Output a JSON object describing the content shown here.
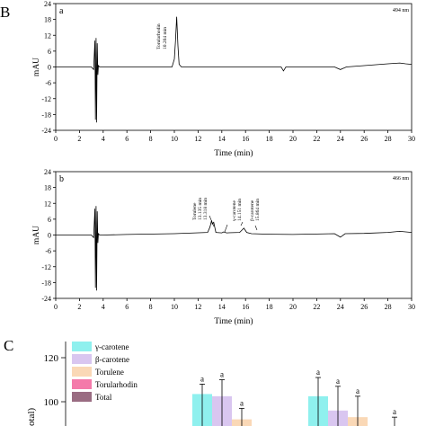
{
  "figure": {
    "panel_B_label": "B",
    "panel_C_label": "C"
  },
  "chart_data": [
    {
      "type": "line",
      "panel_label": "a",
      "wavelength": "494 nm",
      "xlabel": "Time (min)",
      "ylabel": "mAU",
      "xlim": [
        0,
        30
      ],
      "ylim": [
        -24,
        24
      ],
      "xticks": [
        0,
        2,
        4,
        6,
        8,
        10,
        12,
        14,
        16,
        18,
        20,
        22,
        24,
        26,
        28,
        30
      ],
      "yticks": [
        -24,
        -18,
        -12,
        -6,
        0,
        6,
        12,
        18,
        24
      ],
      "grid": false,
      "series": [
        {
          "x": [
            0,
            3.0,
            3.2,
            3.3,
            3.35,
            3.4,
            3.45,
            3.5,
            3.55,
            3.6,
            3.7,
            3.8,
            4.0,
            5,
            8,
            9.8,
            10.0,
            10.1,
            10.2,
            10.3,
            10.4,
            10.6,
            11,
            14,
            19.0,
            19.2,
            19.4,
            20,
            23.5,
            24.0,
            24.5,
            26,
            28,
            29,
            29.5,
            30
          ],
          "y": [
            0,
            0,
            -1,
            10,
            -20,
            11,
            -21,
            9,
            -3,
            0.5,
            0,
            0,
            0,
            0,
            0,
            0,
            3,
            10,
            19,
            8,
            1,
            0,
            0,
            0,
            0,
            -1.5,
            0,
            0,
            0,
            -1,
            0,
            0.5,
            1.2,
            1.5,
            1.2,
            1.0
          ]
        }
      ],
      "annotations": [
        {
          "text": "Torularhodin",
          "x": 10.2
        },
        {
          "text": "10.204 min",
          "x": 10.2
        }
      ]
    },
    {
      "type": "line",
      "panel_label": "b",
      "wavelength": "466 nm",
      "xlabel": "Time (min)",
      "ylabel": "mAU",
      "xlim": [
        0,
        30
      ],
      "ylim": [
        -24,
        24
      ],
      "xticks": [
        0,
        2,
        4,
        6,
        8,
        10,
        12,
        14,
        16,
        18,
        20,
        22,
        24,
        26,
        28,
        30
      ],
      "yticks": [
        -24,
        -18,
        -12,
        -6,
        0,
        6,
        12,
        18,
        24
      ],
      "grid": false,
      "series": [
        {
          "x": [
            0,
            3.0,
            3.2,
            3.3,
            3.35,
            3.4,
            3.45,
            3.5,
            3.55,
            3.6,
            3.7,
            3.8,
            4.0,
            6,
            10,
            12.8,
            13.0,
            13.135,
            13.2,
            13.318,
            13.5,
            14.0,
            14.151,
            14.4,
            15.5,
            15.864,
            16.1,
            16.5,
            18,
            20,
            23.5,
            24.0,
            24.4,
            26,
            28,
            29,
            29.5,
            30
          ],
          "y": [
            0,
            0,
            -1,
            10,
            -20,
            11,
            -21,
            9,
            -3,
            0.5,
            0,
            0,
            0,
            0.2,
            0.5,
            1.0,
            3.0,
            5.5,
            4.2,
            4.8,
            1.0,
            0.8,
            1.2,
            0.8,
            1.0,
            2.6,
            1.0,
            0.5,
            0.3,
            0.2,
            0.5,
            -0.8,
            0.5,
            0.6,
            1.0,
            1.4,
            1.2,
            1.0
          ]
        }
      ],
      "annotations": [
        {
          "text": "Torulene",
          "x": 13.135
        },
        {
          "text": "13.135 min",
          "x": 13.135
        },
        {
          "text": "13.318 min",
          "x": 13.318
        },
        {
          "text": "γ-carotene",
          "x": 14.151
        },
        {
          "text": "14.151 min",
          "x": 14.151
        },
        {
          "text": "β-carotene",
          "x": 15.864
        },
        {
          "text": "15.864 min",
          "x": 15.864
        }
      ]
    },
    {
      "type": "bar",
      "panel_label": "C",
      "ylabel": "otal)",
      "ylim": [
        80,
        125
      ],
      "yticks": [
        100,
        120
      ],
      "legend_position": "top-left",
      "series": [
        {
          "name": "γ-carotene",
          "color": "#8ff0ee"
        },
        {
          "name": "β-carotene",
          "color": "#d9c6f0"
        },
        {
          "name": "Torulene",
          "color": "#fad8b6"
        },
        {
          "name": "Torularhodin",
          "color": "#f47aaa"
        },
        {
          "name": "Total",
          "color": "#9a6c82"
        }
      ],
      "groups": [
        {
          "bars": [
            {
              "series": 0,
              "value": 103.5,
              "err": 4.5,
              "letter": "a"
            },
            {
              "series": 1,
              "value": 102.5,
              "err": 7.5,
              "letter": "a"
            },
            {
              "series": 2,
              "value": 92.0,
              "err": 5.0,
              "letter": "a"
            }
          ]
        },
        {
          "bars": [
            {
              "series": 0,
              "value": 102.5,
              "err": 8.5,
              "letter": "a"
            },
            {
              "series": 1,
              "value": 96.0,
              "err": 11.0,
              "letter": "a"
            },
            {
              "series": 2,
              "value": 93.0,
              "err": 9.5,
              "letter": "a"
            }
          ]
        },
        {
          "bars": [
            {
              "series": 0,
              "value": 91.0,
              "err": 2.0,
              "letter": "a"
            }
          ]
        }
      ]
    }
  ]
}
